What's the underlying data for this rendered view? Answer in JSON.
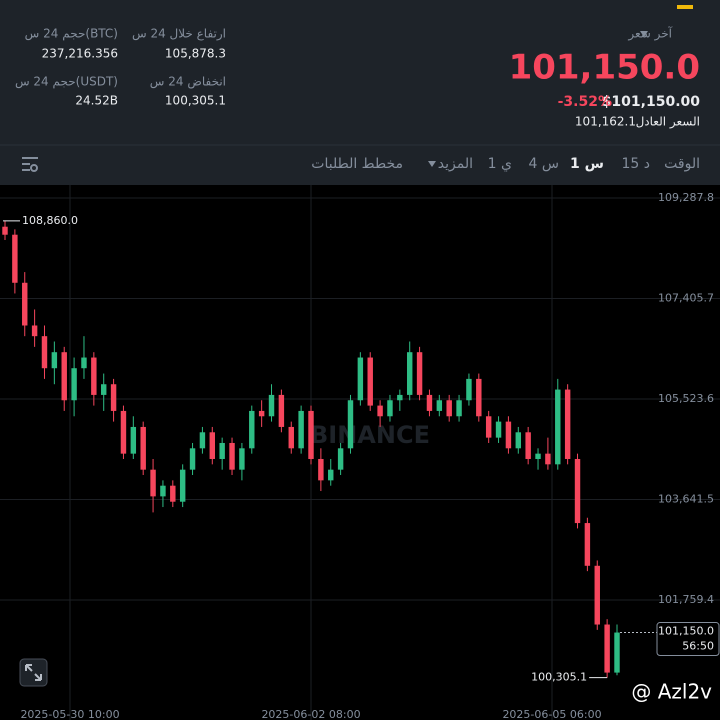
{
  "header": {
    "last_price_label": "آخر سعر",
    "last_price": "101,150.0",
    "change_pct": "-3.52%",
    "usd_price": "$101,150.00",
    "fair_price_label": "السعر العادل",
    "fair_price": "101,162.1",
    "high_label": "ارتفاع خلال 24 س",
    "high": "105,878.3",
    "low_label": "انخفاض 24 س",
    "low": "100,305.1",
    "vol_btc_label": "حجم 24 س(BTC)",
    "vol_btc": "237,216.356",
    "vol_usdt_label": "حجم 24 س(USDT)",
    "vol_usdt": "24.52B"
  },
  "tabs": [
    "الوقت",
    "15 د",
    "1 س",
    "4 س",
    "1 ي",
    "المزيد",
    "مخطط الطلبات"
  ],
  "chart_data": {
    "type": "candlestick",
    "up_color": "#2ebd85",
    "down_color": "#f6465d",
    "grid": true,
    "watermark": "BINANCE",
    "ylim": [
      99793,
      109531
    ],
    "yticks": [
      {
        "value": 109287.8,
        "label": "109,287.8"
      },
      {
        "value": 107405.7,
        "label": "107,405.7"
      },
      {
        "value": 105523.6,
        "label": "105,523.6"
      },
      {
        "value": 103641.5,
        "label": "103,641.5"
      },
      {
        "value": 101759.4,
        "label": "101,759.4"
      }
    ],
    "xlabels": [
      "2025-05-30 10:00",
      "2025-06-02 08:00",
      "2025-06-05 06:00"
    ],
    "max_marker": {
      "value": 108860,
      "label": "108,860.0"
    },
    "min_marker": {
      "value": 100305.1,
      "label": "100,305.1"
    },
    "last_price": {
      "value": 101150,
      "label": "101,150.0"
    },
    "countdown": "56:50",
    "candles": [
      {
        "o": 108750,
        "h": 108860,
        "l": 108500,
        "c": 108600
      },
      {
        "o": 108600,
        "h": 108700,
        "l": 107500,
        "c": 107700
      },
      {
        "o": 107700,
        "h": 107900,
        "l": 106700,
        "c": 106900
      },
      {
        "o": 106900,
        "h": 107200,
        "l": 106500,
        "c": 106700
      },
      {
        "o": 106700,
        "h": 106900,
        "l": 105900,
        "c": 106100
      },
      {
        "o": 106100,
        "h": 106600,
        "l": 105800,
        "c": 106400
      },
      {
        "o": 106400,
        "h": 106500,
        "l": 105300,
        "c": 105500
      },
      {
        "o": 105500,
        "h": 106300,
        "l": 105200,
        "c": 106100
      },
      {
        "o": 106100,
        "h": 106700,
        "l": 105900,
        "c": 106300
      },
      {
        "o": 106300,
        "h": 106400,
        "l": 105400,
        "c": 105600
      },
      {
        "o": 105600,
        "h": 106000,
        "l": 105300,
        "c": 105800
      },
      {
        "o": 105800,
        "h": 105900,
        "l": 105100,
        "c": 105300
      },
      {
        "o": 105300,
        "h": 105400,
        "l": 104400,
        "c": 104500
      },
      {
        "o": 104500,
        "h": 105200,
        "l": 104400,
        "c": 105000
      },
      {
        "o": 105000,
        "h": 105100,
        "l": 104100,
        "c": 104200
      },
      {
        "o": 104200,
        "h": 104400,
        "l": 103400,
        "c": 103700
      },
      {
        "o": 103700,
        "h": 104000,
        "l": 103500,
        "c": 103900
      },
      {
        "o": 103900,
        "h": 104000,
        "l": 103500,
        "c": 103600
      },
      {
        "o": 103600,
        "h": 104300,
        "l": 103500,
        "c": 104200
      },
      {
        "o": 104200,
        "h": 104700,
        "l": 104100,
        "c": 104600
      },
      {
        "o": 104600,
        "h": 105000,
        "l": 104500,
        "c": 104900
      },
      {
        "o": 104900,
        "h": 105000,
        "l": 104300,
        "c": 104400
      },
      {
        "o": 104400,
        "h": 104800,
        "l": 104200,
        "c": 104700
      },
      {
        "o": 104700,
        "h": 104800,
        "l": 104100,
        "c": 104200
      },
      {
        "o": 104200,
        "h": 104700,
        "l": 104000,
        "c": 104600
      },
      {
        "o": 104600,
        "h": 105400,
        "l": 104500,
        "c": 105300
      },
      {
        "o": 105300,
        "h": 105500,
        "l": 105000,
        "c": 105200
      },
      {
        "o": 105200,
        "h": 105800,
        "l": 105100,
        "c": 105600
      },
      {
        "o": 105600,
        "h": 105700,
        "l": 104900,
        "c": 105000
      },
      {
        "o": 105000,
        "h": 105100,
        "l": 104500,
        "c": 104600
      },
      {
        "o": 104600,
        "h": 105400,
        "l": 104500,
        "c": 105300
      },
      {
        "o": 105300,
        "h": 105400,
        "l": 104300,
        "c": 104400
      },
      {
        "o": 104400,
        "h": 104600,
        "l": 103800,
        "c": 104000
      },
      {
        "o": 104000,
        "h": 104400,
        "l": 103900,
        "c": 104200
      },
      {
        "o": 104200,
        "h": 104700,
        "l": 104100,
        "c": 104600
      },
      {
        "o": 104600,
        "h": 105600,
        "l": 104500,
        "c": 105500
      },
      {
        "o": 105500,
        "h": 106400,
        "l": 105400,
        "c": 106300
      },
      {
        "o": 106300,
        "h": 106400,
        "l": 105300,
        "c": 105400
      },
      {
        "o": 105400,
        "h": 105500,
        "l": 105000,
        "c": 105200
      },
      {
        "o": 105200,
        "h": 105600,
        "l": 105100,
        "c": 105500
      },
      {
        "o": 105500,
        "h": 105700,
        "l": 105300,
        "c": 105600
      },
      {
        "o": 105600,
        "h": 106600,
        "l": 105500,
        "c": 106400
      },
      {
        "o": 106400,
        "h": 106500,
        "l": 105500,
        "c": 105600
      },
      {
        "o": 105600,
        "h": 105700,
        "l": 105200,
        "c": 105300
      },
      {
        "o": 105300,
        "h": 105600,
        "l": 105200,
        "c": 105500
      },
      {
        "o": 105500,
        "h": 105600,
        "l": 105100,
        "c": 105200
      },
      {
        "o": 105200,
        "h": 105600,
        "l": 105100,
        "c": 105500
      },
      {
        "o": 105500,
        "h": 106000,
        "l": 105400,
        "c": 105900
      },
      {
        "o": 105900,
        "h": 106000,
        "l": 105100,
        "c": 105200
      },
      {
        "o": 105200,
        "h": 105300,
        "l": 104700,
        "c": 104800
      },
      {
        "o": 104800,
        "h": 105200,
        "l": 104700,
        "c": 105100
      },
      {
        "o": 105100,
        "h": 105200,
        "l": 104500,
        "c": 104600
      },
      {
        "o": 104600,
        "h": 105000,
        "l": 104500,
        "c": 104900
      },
      {
        "o": 104900,
        "h": 105000,
        "l": 104300,
        "c": 104400
      },
      {
        "o": 104400,
        "h": 104600,
        "l": 104200,
        "c": 104500
      },
      {
        "o": 104500,
        "h": 104800,
        "l": 104200,
        "c": 104300
      },
      {
        "o": 104300,
        "h": 105900,
        "l": 104200,
        "c": 105700
      },
      {
        "o": 105700,
        "h": 105800,
        "l": 104300,
        "c": 104400
      },
      {
        "o": 104400,
        "h": 104500,
        "l": 103100,
        "c": 103200
      },
      {
        "o": 103200,
        "h": 103300,
        "l": 102300,
        "c": 102400
      },
      {
        "o": 102400,
        "h": 102500,
        "l": 101200,
        "c": 101300
      },
      {
        "o": 101300,
        "h": 101400,
        "l": 100305.1,
        "c": 100400
      },
      {
        "o": 100400,
        "h": 101300,
        "l": 100350,
        "c": 101150
      }
    ]
  },
  "credit": "@ Azl2v"
}
